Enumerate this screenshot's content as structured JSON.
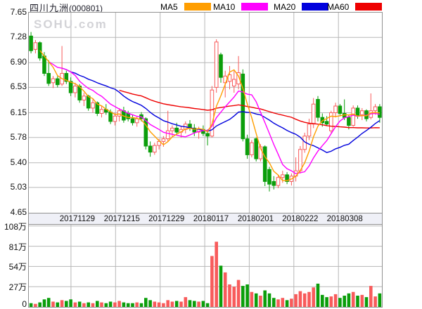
{
  "header": {
    "title": "四川九洲",
    "code": "(000801)"
  },
  "watermark": "SOHU.com",
  "legend": [
    {
      "label": "MA5",
      "color": "#ff9e00"
    },
    {
      "label": "MA10",
      "color": "#ff00ff"
    },
    {
      "label": "MA20",
      "color": "#0000dd"
    },
    {
      "label": "MA60",
      "color": "#ee0000"
    }
  ],
  "chart_data": {
    "type": "candlestick+volume",
    "title": "四川九洲 (000801)",
    "grid": true,
    "up_color": "#f85b5b",
    "down_color": "#0b9e0b",
    "grid_color": "#b7b7b7",
    "price_axis": {
      "min": 4.65,
      "max": 7.65,
      "ticks": [
        7.65,
        7.28,
        6.9,
        6.53,
        6.15,
        5.78,
        5.4,
        5.03,
        4.65
      ],
      "tick_labels": [
        "7.65",
        "7.28",
        "6.90",
        "6.53",
        "6.15",
        "5.78",
        "5.40",
        "5.03",
        "4.65"
      ]
    },
    "volume_axis": {
      "unit": "万",
      "max": 109.7,
      "ticks": [
        108,
        81,
        54,
        27
      ],
      "tick_labels": [
        "108万",
        "81万",
        "54万",
        "27万"
      ],
      "zero_label": "0"
    },
    "x_ticks": [
      {
        "label": "20171129",
        "index": 9.05
      },
      {
        "label": "20171215",
        "index": 19.15
      },
      {
        "label": "20171229",
        "index": 29.25
      },
      {
        "label": "20180117",
        "index": 39.35
      },
      {
        "label": "20180201",
        "index": 49.45
      },
      {
        "label": "20180222",
        "index": 59.55
      },
      {
        "label": "20180308",
        "index": 69.65
      }
    ],
    "ma_lines": [
      {
        "name": "MA60",
        "window": 60,
        "start": 20,
        "color": "#ee0000"
      },
      {
        "name": "MA20",
        "window": 20,
        "start": 7,
        "color": "#0000dd"
      },
      {
        "name": "MA10",
        "window": 10,
        "start": 4,
        "color": "#ff00ff"
      },
      {
        "name": "MA5",
        "window": 5,
        "start": 2,
        "color": "#ff9e00"
      }
    ],
    "candles": [
      [
        7.3,
        7.36,
        7.04,
        7.08,
        5
      ],
      [
        7.1,
        7.24,
        7.04,
        7.2,
        4
      ],
      [
        7.2,
        7.22,
        6.93,
        6.97,
        6
      ],
      [
        7.0,
        7.06,
        6.7,
        6.74,
        10
      ],
      [
        6.74,
        6.94,
        6.55,
        6.59,
        12
      ],
      [
        6.6,
        6.7,
        6.52,
        6.66,
        7
      ],
      [
        6.66,
        6.7,
        6.53,
        6.57,
        6
      ],
      [
        6.58,
        7.15,
        6.55,
        6.74,
        9
      ],
      [
        6.74,
        6.78,
        6.58,
        6.62,
        8
      ],
      [
        6.62,
        6.68,
        6.4,
        6.45,
        10
      ],
      [
        6.45,
        6.6,
        6.38,
        6.55,
        6
      ],
      [
        6.55,
        6.58,
        6.3,
        6.34,
        7
      ],
      [
        6.34,
        6.45,
        6.25,
        6.4,
        5
      ],
      [
        6.4,
        6.42,
        6.18,
        6.22,
        6
      ],
      [
        6.22,
        6.35,
        6.15,
        6.3,
        5
      ],
      [
        6.3,
        6.32,
        6.1,
        6.14,
        8
      ],
      [
        6.14,
        6.25,
        6.08,
        6.2,
        6
      ],
      [
        6.2,
        6.28,
        6.12,
        6.16,
        5
      ],
      [
        6.16,
        6.2,
        5.98,
        6.02,
        7
      ],
      [
        6.02,
        6.15,
        5.96,
        6.1,
        6
      ],
      [
        6.1,
        6.22,
        6.02,
        6.18,
        8
      ],
      [
        6.18,
        6.24,
        6.0,
        6.04,
        6
      ],
      [
        6.14,
        6.18,
        6.02,
        6.06,
        5
      ],
      [
        6.06,
        6.12,
        5.96,
        6.0,
        5
      ],
      [
        6.0,
        6.1,
        5.94,
        6.06,
        6
      ],
      [
        6.12,
        6.16,
        6.02,
        6.06,
        5
      ],
      [
        6.06,
        6.08,
        5.6,
        5.65,
        12
      ],
      [
        5.65,
        5.72,
        5.49,
        5.56,
        9
      ],
      [
        5.56,
        5.7,
        5.52,
        5.66,
        7
      ],
      [
        5.66,
        5.76,
        5.6,
        5.72,
        6
      ],
      [
        5.72,
        5.8,
        5.64,
        5.76,
        5
      ],
      [
        5.76,
        6.18,
        5.72,
        5.88,
        9
      ],
      [
        5.88,
        5.96,
        5.78,
        5.92,
        7
      ],
      [
        5.92,
        6.0,
        5.82,
        5.86,
        8
      ],
      [
        5.86,
        5.95,
        5.78,
        5.9,
        7
      ],
      [
        5.9,
        6.02,
        5.84,
        5.98,
        13
      ],
      [
        5.98,
        6.04,
        5.88,
        5.92,
        9
      ],
      [
        5.92,
        5.98,
        5.8,
        5.86,
        8
      ],
      [
        5.86,
        5.94,
        5.76,
        5.9,
        7
      ],
      [
        5.9,
        5.96,
        5.8,
        5.84,
        8
      ],
      [
        5.84,
        5.9,
        5.66,
        5.8,
        5
      ],
      [
        5.8,
        6.55,
        5.78,
        6.49,
        68
      ],
      [
        6.53,
        7.25,
        6.45,
        7.21,
        87
      ],
      [
        7.02,
        7.05,
        6.6,
        6.68,
        55
      ],
      [
        6.6,
        6.78,
        6.38,
        6.7,
        46
      ],
      [
        6.62,
        6.85,
        6.5,
        6.72,
        30
      ],
      [
        6.55,
        6.78,
        6.45,
        6.65,
        27
      ],
      [
        6.58,
        7.0,
        6.5,
        6.75,
        36
      ],
      [
        6.73,
        6.8,
        5.72,
        5.76,
        28
      ],
      [
        5.76,
        5.82,
        5.46,
        5.52,
        30
      ],
      [
        5.52,
        5.74,
        5.48,
        5.7,
        20
      ],
      [
        5.76,
        5.78,
        5.42,
        5.46,
        18
      ],
      [
        5.46,
        5.68,
        5.42,
        5.64,
        15
      ],
      [
        5.64,
        5.66,
        5.05,
        5.12,
        22
      ],
      [
        5.3,
        5.34,
        4.97,
        5.08,
        18
      ],
      [
        5.12,
        5.2,
        5.0,
        5.06,
        12
      ],
      [
        5.06,
        5.22,
        5.02,
        5.18,
        10
      ],
      [
        5.18,
        5.28,
        5.1,
        5.22,
        12
      ],
      [
        5.22,
        5.26,
        5.08,
        5.12,
        9
      ],
      [
        5.12,
        5.24,
        5.06,
        5.2,
        11
      ],
      [
        5.2,
        5.48,
        5.12,
        5.28,
        17
      ],
      [
        5.28,
        5.65,
        5.24,
        5.6,
        21
      ],
      [
        5.6,
        5.85,
        5.55,
        5.8,
        18
      ],
      [
        5.8,
        6.06,
        5.74,
        5.98,
        20
      ],
      [
        5.98,
        6.37,
        5.92,
        6.28,
        26
      ],
      [
        6.35,
        6.4,
        6.02,
        6.08,
        31
      ],
      [
        6.08,
        6.14,
        5.94,
        6.0,
        16
      ],
      [
        6.02,
        6.1,
        5.95,
        5.98,
        13
      ],
      [
        5.88,
        6.18,
        5.84,
        6.15,
        14
      ],
      [
        6.15,
        6.3,
        6.08,
        6.25,
        17
      ],
      [
        6.25,
        6.28,
        6.1,
        6.14,
        12
      ],
      [
        6.14,
        6.35,
        6.04,
        6.08,
        15
      ],
      [
        6.08,
        6.12,
        5.9,
        5.96,
        18
      ],
      [
        5.96,
        6.26,
        5.94,
        6.22,
        20
      ],
      [
        6.22,
        6.26,
        6.06,
        6.1,
        15
      ],
      [
        6.12,
        6.22,
        6.04,
        6.18,
        16
      ],
      [
        6.18,
        6.2,
        6.02,
        6.06,
        13
      ],
      [
        6.08,
        6.44,
        6.05,
        6.18,
        28
      ],
      [
        6.18,
        6.28,
        6.12,
        6.24,
        14
      ],
      [
        6.24,
        6.28,
        6.0,
        6.08,
        18
      ]
    ]
  }
}
